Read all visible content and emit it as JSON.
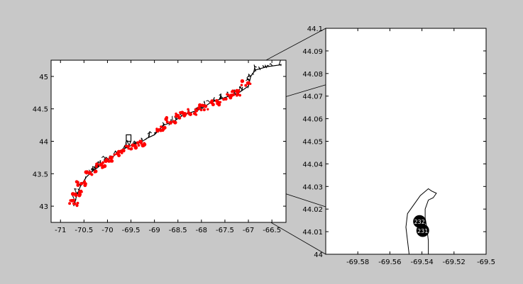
{
  "chart_data": [
    {
      "type": "map",
      "title": "",
      "xlabel": "",
      "ylabel": "",
      "xlim": [
        -71.2,
        -66.2
      ],
      "ylim": [
        42.75,
        45.25
      ],
      "x_ticks": [
        -71,
        -70.5,
        -70,
        -69.5,
        -69,
        -68.5,
        -68,
        -67.5,
        -67,
        -66.5
      ],
      "y_ticks": [
        43,
        43.5,
        44,
        44.5,
        45
      ],
      "x_tick_labels": [
        "-71",
        "-70.5",
        "-70",
        "-69.5",
        "-69",
        "-68.5",
        "-68",
        "-67.5",
        "-67",
        "-66.5"
      ],
      "y_tick_labels": [
        "43",
        "43.5",
        "44",
        "44.5",
        "45"
      ],
      "grid": false,
      "coastline_color": "#000000",
      "highlight_color": "#ff0000",
      "coastline": [
        [
          -70.72,
          43.0
        ],
        [
          -70.66,
          43.15
        ],
        [
          -70.58,
          43.3
        ],
        [
          -70.45,
          43.45
        ],
        [
          -70.3,
          43.55
        ],
        [
          -70.2,
          43.6
        ],
        [
          -70.05,
          43.7
        ],
        [
          -69.9,
          43.75
        ],
        [
          -69.75,
          43.85
        ],
        [
          -69.6,
          43.9
        ],
        [
          -69.45,
          43.95
        ],
        [
          -69.3,
          43.98
        ],
        [
          -69.15,
          44.05
        ],
        [
          -69.0,
          44.1
        ],
        [
          -68.8,
          44.25
        ],
        [
          -68.6,
          44.3
        ],
        [
          -68.4,
          44.4
        ],
        [
          -68.2,
          44.45
        ],
        [
          -68.0,
          44.5
        ],
        [
          -67.8,
          44.6
        ],
        [
          -67.6,
          44.65
        ],
        [
          -67.4,
          44.7
        ],
        [
          -67.2,
          44.75
        ],
        [
          -67.0,
          44.85
        ],
        [
          -66.95,
          45.0
        ],
        [
          -66.85,
          45.1
        ],
        [
          -66.6,
          45.15
        ],
        [
          -66.3,
          45.18
        ]
      ],
      "red_clusters": [
        {
          "x": -70.72,
          "y": 43.05
        },
        {
          "x": -70.65,
          "y": 43.2
        },
        {
          "x": -70.55,
          "y": 43.35
        },
        {
          "x": -70.35,
          "y": 43.5
        },
        {
          "x": -70.15,
          "y": 43.63
        },
        {
          "x": -69.95,
          "y": 43.72
        },
        {
          "x": -69.75,
          "y": 43.82
        },
        {
          "x": -69.5,
          "y": 43.9
        },
        {
          "x": -69.25,
          "y": 43.97
        },
        {
          "x": -68.85,
          "y": 44.2
        },
        {
          "x": -68.65,
          "y": 44.32
        },
        {
          "x": -68.45,
          "y": 44.4
        },
        {
          "x": -68.2,
          "y": 44.45
        },
        {
          "x": -67.95,
          "y": 44.52
        },
        {
          "x": -67.7,
          "y": 44.6
        },
        {
          "x": -67.45,
          "y": 44.68
        },
        {
          "x": -67.25,
          "y": 44.75
        },
        {
          "x": -67.05,
          "y": 44.9
        }
      ],
      "inset_box": {
        "xmin": -69.6,
        "xmax": -69.5,
        "ymin": 44.0,
        "ymax": 44.1
      }
    },
    {
      "type": "map",
      "title": "",
      "xlabel": "",
      "ylabel": "",
      "xlim": [
        -69.6,
        -69.5
      ],
      "ylim": [
        44.0,
        44.1
      ],
      "x_ticks": [
        -69.58,
        -69.56,
        -69.54,
        -69.52,
        -69.5
      ],
      "y_ticks": [
        44,
        44.01,
        44.02,
        44.03,
        44.04,
        44.05,
        44.06,
        44.07,
        44.08,
        44.09,
        44.1
      ],
      "x_tick_labels": [
        "-69.58",
        "-69.56",
        "-69.54",
        "-69.52",
        "-69.5"
      ],
      "y_tick_labels": [
        "44",
        "44.01",
        "44.02",
        "44.03",
        "44.04",
        "44.05",
        "44.06",
        "44.07",
        "44.08",
        "44.09",
        "44.1"
      ],
      "grid": false,
      "coastline": [
        [
          -69.548,
          44.0
        ],
        [
          -69.549,
          44.006
        ],
        [
          -69.55,
          44.012
        ],
        [
          -69.549,
          44.018
        ],
        [
          -69.545,
          44.022
        ],
        [
          -69.541,
          44.026
        ],
        [
          -69.536,
          44.029
        ],
        [
          -69.534,
          44.028
        ],
        [
          -69.531,
          44.027
        ],
        [
          -69.533,
          44.025
        ],
        [
          -69.536,
          44.024
        ],
        [
          -69.538,
          44.02
        ],
        [
          -69.538,
          44.016
        ],
        [
          -69.537,
          44.012
        ],
        [
          -69.536,
          44.006
        ],
        [
          -69.536,
          44.0
        ]
      ],
      "points": [
        {
          "label": "232",
          "x": -69.5415,
          "y": 44.0145
        },
        {
          "label": "231",
          "x": -69.5395,
          "y": 44.0105
        }
      ]
    }
  ]
}
